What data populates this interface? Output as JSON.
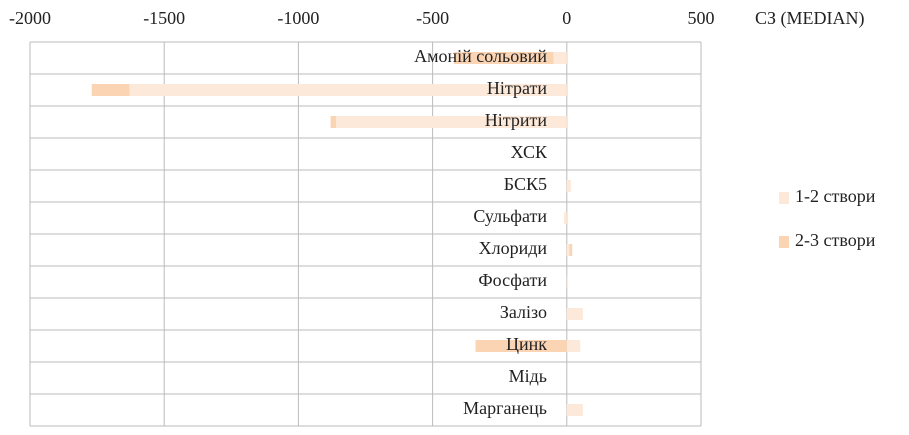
{
  "chart_data": {
    "type": "hbar",
    "title": "СЗ (MEDIAN)",
    "categories": [
      "Амоній сольовий",
      "Нітрати",
      "Нітрити",
      "ХСК",
      "БСК5",
      "Сульфати",
      "Хлориди",
      "Фосфати",
      "Залізо",
      "Цинк",
      "Мідь",
      "Марганець"
    ],
    "series": [
      {
        "name": "1-2 створи",
        "color": "#fde9d9",
        "values": [
          -50,
          -1630,
          -860,
          0,
          15,
          -10,
          10,
          5,
          60,
          50,
          0,
          60
        ]
      },
      {
        "name": "2-3 створи",
        "color": "#fbd4b4",
        "values": [
          -420,
          -1770,
          -880,
          0,
          10,
          -5,
          20,
          0,
          50,
          -340,
          0,
          40
        ]
      }
    ],
    "xlim": [
      -2000,
      500
    ],
    "xticks": [
      -2000,
      -1500,
      -1000,
      -500,
      0,
      500
    ],
    "grid": true,
    "legend": "right"
  }
}
